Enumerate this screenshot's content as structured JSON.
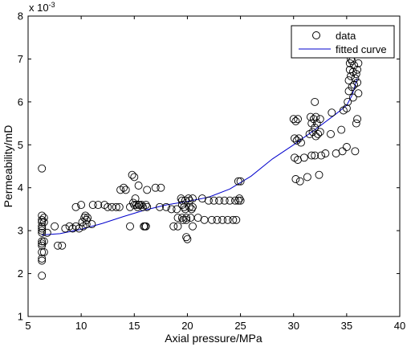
{
  "chart_data": {
    "type": "scatter",
    "xlabel": "Axial pressure/MPa",
    "ylabel": "Permeability/mD",
    "y_multiplier": "x 10",
    "y_multiplier_exp": "-3",
    "xlim": [
      5,
      40
    ],
    "ylim": [
      1,
      8
    ],
    "xticks": [
      5,
      10,
      15,
      20,
      25,
      30,
      35,
      40
    ],
    "yticks": [
      1,
      2,
      3,
      4,
      5,
      6,
      7,
      8
    ],
    "grid": false,
    "legend_position": "top-right",
    "colors": {
      "data": "#000000",
      "fitted": "#0000cc"
    },
    "series": [
      {
        "name": "data",
        "style": "open-circle",
        "points": [
          [
            6.3,
            4.45
          ],
          [
            6.3,
            3.35
          ],
          [
            6.3,
            3.25
          ],
          [
            6.3,
            3.2
          ],
          [
            6.3,
            3.1
          ],
          [
            6.3,
            3.05
          ],
          [
            6.3,
            3.0
          ],
          [
            6.3,
            2.95
          ],
          [
            6.3,
            2.75
          ],
          [
            6.3,
            2.7
          ],
          [
            6.3,
            2.65
          ],
          [
            6.3,
            2.5
          ],
          [
            6.3,
            2.35
          ],
          [
            6.3,
            2.3
          ],
          [
            6.3,
            1.95
          ],
          [
            6.5,
            3.3
          ],
          [
            6.5,
            3.2
          ],
          [
            6.5,
            2.75
          ],
          [
            6.5,
            2.5
          ],
          [
            6.8,
            2.95
          ],
          [
            7.5,
            3.1
          ],
          [
            7.8,
            2.65
          ],
          [
            8.2,
            2.65
          ],
          [
            8.5,
            3.05
          ],
          [
            8.9,
            3.1
          ],
          [
            9.2,
            3.05
          ],
          [
            9.5,
            3.1
          ],
          [
            9.8,
            3.05
          ],
          [
            9.5,
            3.55
          ],
          [
            10.0,
            3.6
          ],
          [
            10.1,
            3.2
          ],
          [
            10.2,
            3.1
          ],
          [
            10.3,
            3.3
          ],
          [
            10.4,
            3.35
          ],
          [
            10.5,
            3.25
          ],
          [
            10.5,
            3.15
          ],
          [
            10.6,
            3.3
          ],
          [
            11.0,
            3.15
          ],
          [
            11.1,
            3.6
          ],
          [
            11.6,
            3.6
          ],
          [
            12.2,
            3.6
          ],
          [
            12.5,
            3.55
          ],
          [
            12.9,
            3.55
          ],
          [
            13.3,
            3.55
          ],
          [
            13.6,
            3.55
          ],
          [
            13.7,
            3.95
          ],
          [
            14.0,
            4.0
          ],
          [
            14.2,
            3.95
          ],
          [
            14.6,
            3.55
          ],
          [
            14.6,
            3.1
          ],
          [
            14.8,
            4.3
          ],
          [
            14.9,
            3.65
          ],
          [
            15.0,
            4.25
          ],
          [
            15.0,
            3.6
          ],
          [
            15.1,
            3.75
          ],
          [
            15.2,
            3.6
          ],
          [
            15.3,
            3.55
          ],
          [
            15.4,
            4.05
          ],
          [
            15.4,
            3.6
          ],
          [
            15.5,
            3.6
          ],
          [
            15.7,
            3.6
          ],
          [
            15.8,
            3.55
          ],
          [
            15.9,
            3.1
          ],
          [
            16.0,
            3.1
          ],
          [
            16.1,
            3.1
          ],
          [
            16.1,
            3.6
          ],
          [
            16.2,
            3.55
          ],
          [
            16.2,
            3.95
          ],
          [
            17.0,
            4.0
          ],
          [
            17.4,
            3.55
          ],
          [
            17.5,
            4.0
          ],
          [
            18.0,
            3.55
          ],
          [
            18.5,
            3.5
          ],
          [
            18.7,
            3.1
          ],
          [
            19.0,
            3.5
          ],
          [
            19.1,
            3.1
          ],
          [
            19.1,
            3.3
          ],
          [
            19.4,
            3.75
          ],
          [
            19.5,
            3.7
          ],
          [
            19.5,
            3.6
          ],
          [
            19.5,
            3.3
          ],
          [
            19.6,
            3.25
          ],
          [
            19.7,
            3.55
          ],
          [
            19.8,
            3.7
          ],
          [
            19.8,
            3.5
          ],
          [
            19.9,
            3.3
          ],
          [
            19.9,
            3.25
          ],
          [
            19.9,
            2.85
          ],
          [
            20.0,
            2.8
          ],
          [
            20.1,
            3.75
          ],
          [
            20.2,
            3.7
          ],
          [
            20.2,
            3.55
          ],
          [
            20.3,
            3.3
          ],
          [
            20.4,
            3.5
          ],
          [
            20.5,
            3.55
          ],
          [
            20.5,
            3.1
          ],
          [
            20.5,
            3.75
          ],
          [
            21.0,
            3.3
          ],
          [
            21.4,
            3.75
          ],
          [
            21.6,
            3.25
          ],
          [
            22.0,
            3.7
          ],
          [
            22.3,
            3.25
          ],
          [
            22.5,
            3.7
          ],
          [
            22.8,
            3.25
          ],
          [
            23.0,
            3.7
          ],
          [
            23.3,
            3.25
          ],
          [
            23.5,
            3.7
          ],
          [
            23.8,
            3.25
          ],
          [
            24.0,
            3.7
          ],
          [
            24.3,
            3.25
          ],
          [
            24.5,
            3.7
          ],
          [
            24.6,
            3.25
          ],
          [
            24.8,
            3.7
          ],
          [
            24.8,
            4.15
          ],
          [
            25.0,
            4.15
          ],
          [
            25.0,
            3.7
          ],
          [
            24.9,
            3.75
          ],
          [
            30.0,
            5.6
          ],
          [
            30.1,
            5.15
          ],
          [
            30.1,
            4.7
          ],
          [
            30.2,
            5.55
          ],
          [
            30.2,
            4.2
          ],
          [
            30.3,
            5.1
          ],
          [
            30.4,
            4.65
          ],
          [
            30.4,
            5.6
          ],
          [
            30.5,
            5.15
          ],
          [
            30.6,
            4.15
          ],
          [
            30.7,
            5.05
          ],
          [
            31.0,
            4.7
          ],
          [
            31.3,
            4.25
          ],
          [
            31.5,
            5.25
          ],
          [
            31.6,
            5.65
          ],
          [
            31.7,
            4.75
          ],
          [
            31.7,
            5.5
          ],
          [
            31.8,
            5.3
          ],
          [
            31.9,
            5.6
          ],
          [
            32.0,
            6.0
          ],
          [
            32.0,
            5.4
          ],
          [
            32.0,
            4.75
          ],
          [
            32.1,
            5.65
          ],
          [
            32.1,
            5.2
          ],
          [
            32.2,
            5.5
          ],
          [
            32.3,
            5.25
          ],
          [
            32.4,
            4.3
          ],
          [
            32.5,
            5.3
          ],
          [
            32.5,
            5.6
          ],
          [
            32.6,
            4.75
          ],
          [
            33.0,
            4.8
          ],
          [
            33.5,
            5.25
          ],
          [
            33.6,
            5.75
          ],
          [
            34.0,
            4.8
          ],
          [
            34.5,
            5.35
          ],
          [
            34.6,
            4.85
          ],
          [
            34.7,
            5.8
          ],
          [
            35.0,
            4.95
          ],
          [
            35.0,
            5.85
          ],
          [
            35.1,
            6.0
          ],
          [
            35.2,
            6.25
          ],
          [
            35.2,
            6.5
          ],
          [
            35.3,
            6.75
          ],
          [
            35.3,
            6.9
          ],
          [
            35.4,
            7.0
          ],
          [
            35.4,
            6.6
          ],
          [
            35.5,
            6.35
          ],
          [
            35.5,
            6.95
          ],
          [
            35.6,
            6.1
          ],
          [
            35.6,
            6.7
          ],
          [
            35.7,
            6.4
          ],
          [
            35.7,
            6.85
          ],
          [
            35.8,
            4.85
          ],
          [
            35.8,
            6.55
          ],
          [
            35.9,
            5.5
          ],
          [
            35.9,
            6.65
          ],
          [
            36.0,
            5.6
          ],
          [
            36.0,
            6.75
          ],
          [
            36.0,
            6.45
          ],
          [
            36.1,
            6.2
          ],
          [
            36.1,
            6.9
          ]
        ]
      },
      {
        "name": "fitted curve",
        "style": "line",
        "points": [
          [
            6.3,
            2.9
          ],
          [
            8,
            2.93
          ],
          [
            10,
            3.03
          ],
          [
            12,
            3.17
          ],
          [
            14,
            3.33
          ],
          [
            16,
            3.48
          ],
          [
            18,
            3.6
          ],
          [
            20,
            3.68
          ],
          [
            22,
            3.78
          ],
          [
            24,
            3.97
          ],
          [
            26,
            4.27
          ],
          [
            28,
            4.67
          ],
          [
            30,
            5.0
          ],
          [
            32,
            5.35
          ],
          [
            34,
            5.72
          ],
          [
            35,
            5.92
          ],
          [
            35.5,
            6.15
          ],
          [
            36,
            6.55
          ]
        ]
      }
    ]
  }
}
